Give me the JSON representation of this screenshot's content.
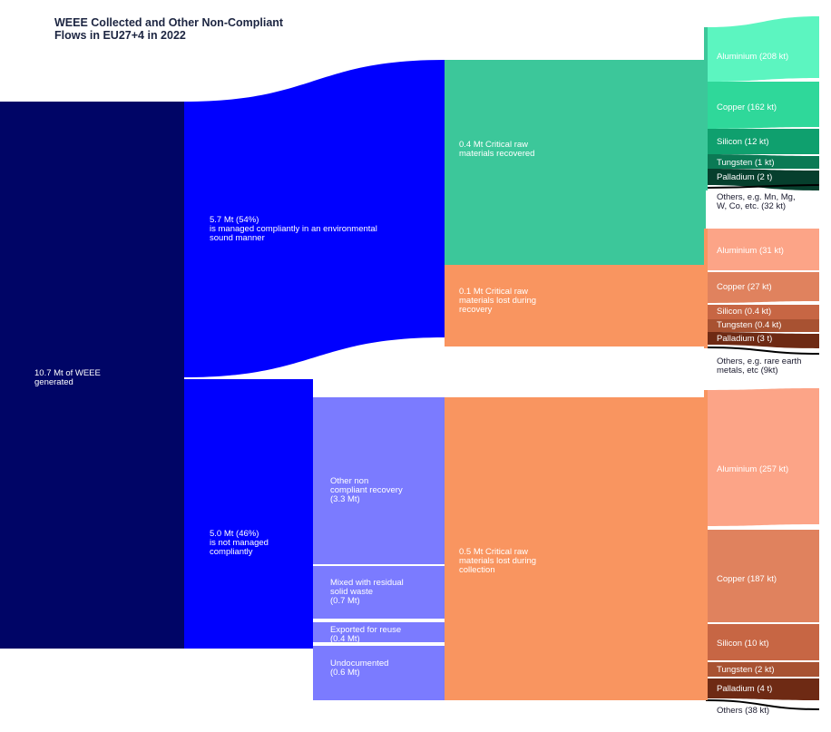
{
  "title": "WEEE Collected and Other Non-Compliant\nFlows in EU27+4 in 2022",
  "colors": {
    "generated": "#000566",
    "compliant": "#0000ff",
    "noncompliant_node": "#0000ff",
    "other_nc": "#7b7bff",
    "crm_recovered": "#3cc79a",
    "crm_lost_recovery": "#f99560",
    "crm_lost_collection": "#f99560",
    "aluminium_rec": "#5cf5c0",
    "copper_rec": "#2fd89a",
    "silicon_rec": "#0fa06e",
    "tungsten_rec": "#0b7a55",
    "palladium_rec": "#063f2d",
    "aluminium_lost": "#fca487",
    "copper_lost": "#e0825e",
    "silicon_lost": "#c76644",
    "tungsten_lost": "#a85232",
    "palladium_lost": "#6e2a14",
    "others": "#000000"
  },
  "nodes": {
    "generated": "10.7 Mt of WEEE\ngenerated",
    "compliant": "5.7 Mt (54%)\nis managed compliantly in an environmental\nsound manner",
    "noncompliant": "5.0 Mt (46%)\nis not managed\ncompliantly",
    "other_nc": "Other non\ncompliant recovery\n(3.3 Mt)",
    "mixed": "Mixed with residual\nsolid waste\n(0.7 Mt)",
    "exported": "Exported for reuse\n(0.4 Mt)",
    "undocumented": "Undocumented\n(0.6 Mt)",
    "crm_recovered": "0.4 Mt Critical raw\nmaterials recovered",
    "crm_lost_recovery": "0.1 Mt Critical raw\nmaterials lost during\nrecovery",
    "crm_lost_collection": "0.5 Mt Critical raw\nmaterials lost during\ncollection",
    "aluminium_rec": "Aluminium (208 kt)",
    "copper_rec": "Copper (162 kt)",
    "silicon_rec": "Silicon (12 kt)",
    "tungsten_rec": "Tungsten (1 kt)",
    "palladium_rec": "Palladium (2 t)",
    "others_rec": "Others, e.g. Mn, Mg,\nW, Co, etc. (32 kt)",
    "aluminium_lr": "Aluminium (31 kt)",
    "copper_lr": "Copper (27 kt)",
    "silicon_lr": "Silicon (0.4 kt)",
    "tungsten_lr": "Tungsten (0.4 kt)",
    "palladium_lr": "Palladium (3 t)",
    "others_lr": "Others, e.g. rare earth\nmetals, etc (9kt)",
    "aluminium_lc": "Aluminium (257 kt)",
    "copper_lc": "Copper (187 kt)",
    "silicon_lc": "Silicon (10 kt)",
    "tungsten_lc": "Tungsten (2 kt)",
    "palladium_lc": "Palladium (4 t)",
    "others_lc": "Others (38 kt)"
  }
}
